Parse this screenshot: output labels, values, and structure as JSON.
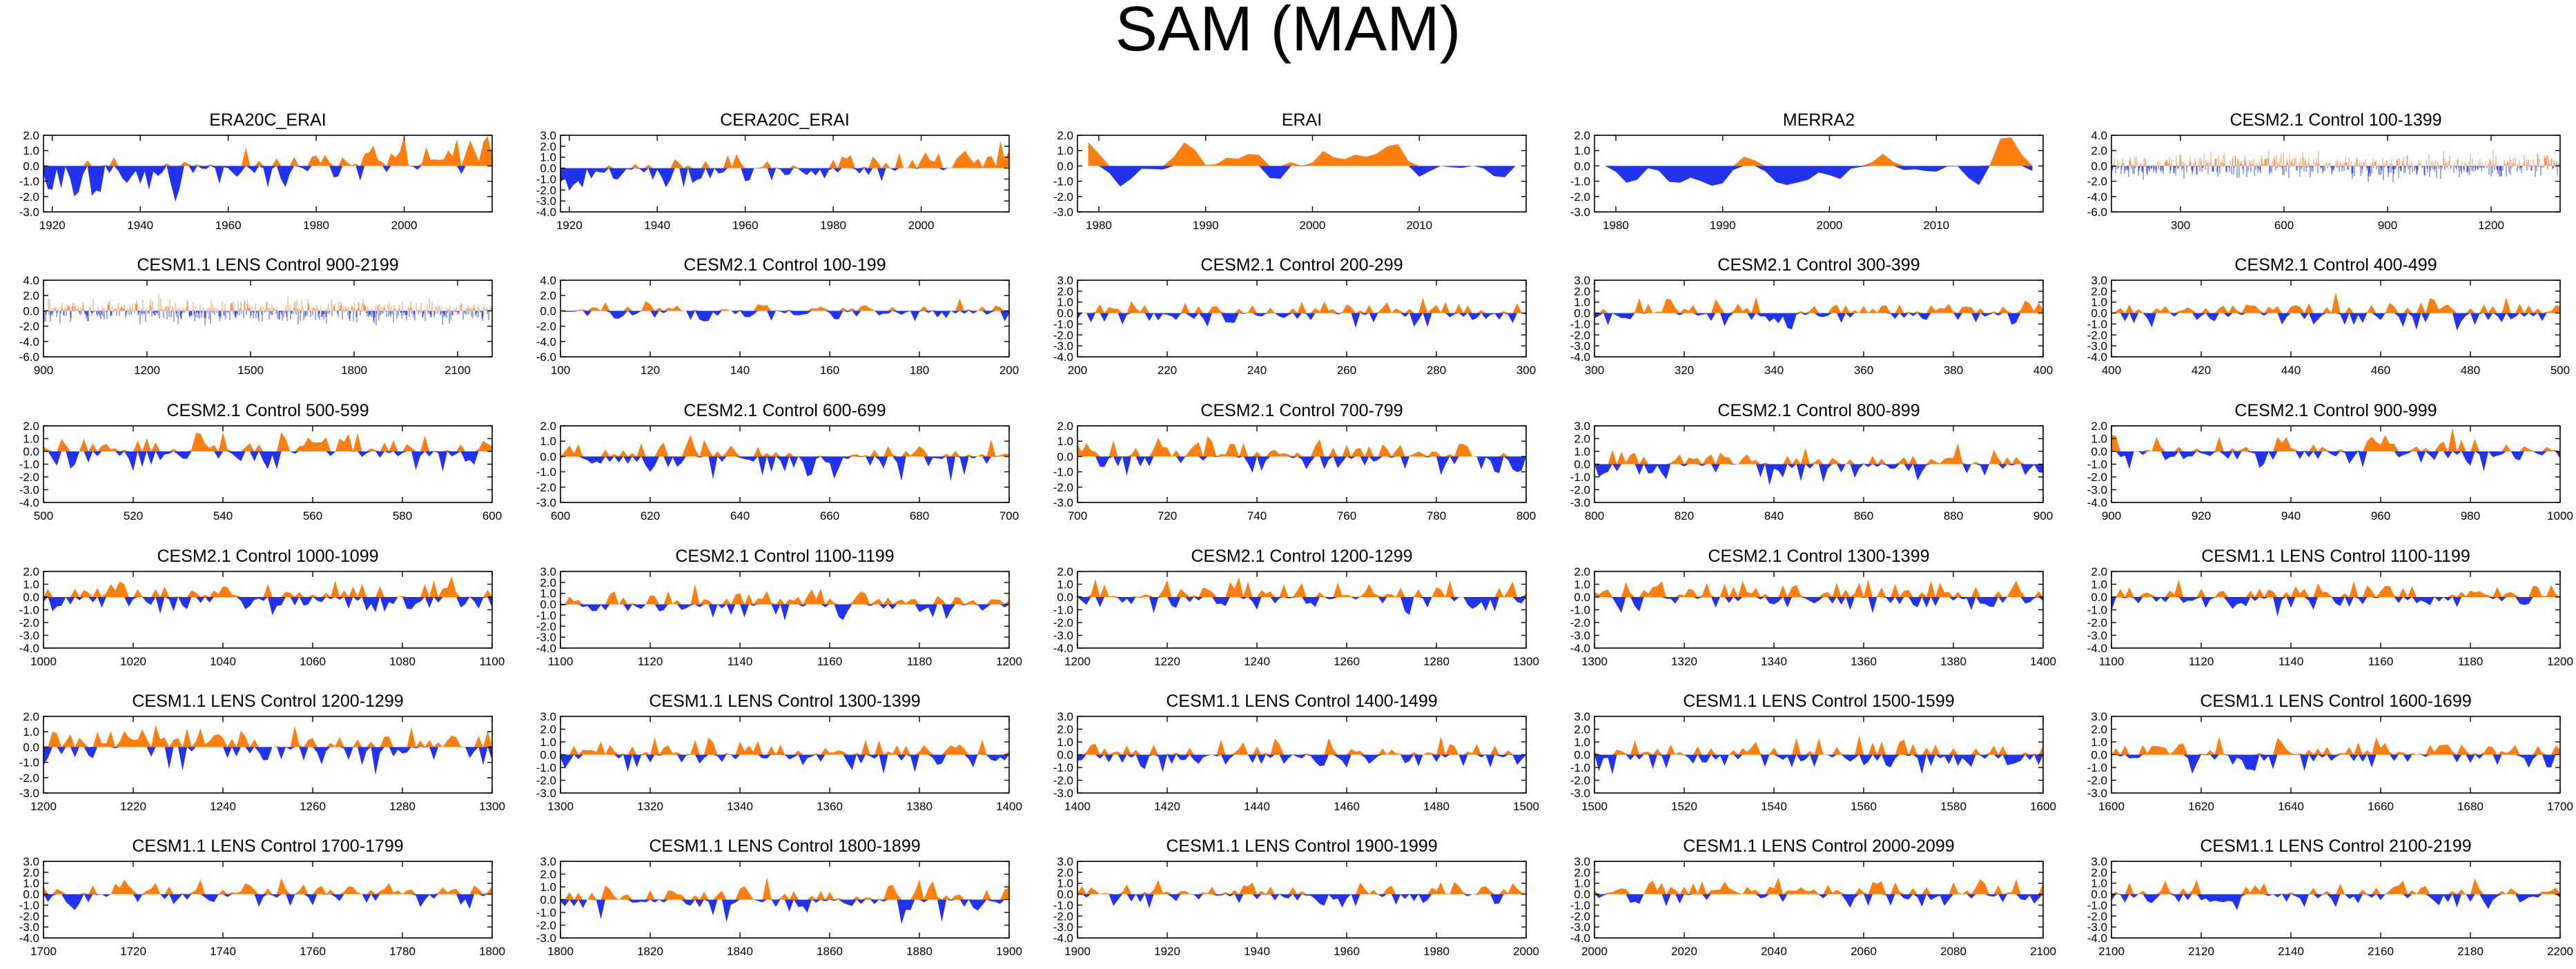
{
  "title": "SAM (MAM)",
  "colors": {
    "positive": "#ff7f0e",
    "negative": "#2233ee",
    "axis": "#000000"
  },
  "chart_data": [
    {
      "type": "area",
      "title": "ERA20C_ERAI",
      "xlim": [
        1918,
        2020
      ],
      "xticks": [
        "1920",
        "1940",
        "1960",
        "1980",
        "2000"
      ],
      "ylim": [
        -3,
        2
      ],
      "yticks": [
        "2.0",
        "1.0",
        "0.0",
        "-1.0",
        "-2.0",
        "-3.0"
      ],
      "style": "annual",
      "trend": 0.55,
      "amp": 1.0,
      "seed": 11
    },
    {
      "type": "area",
      "title": "CERA20C_ERAI",
      "xlim": [
        1918,
        2020
      ],
      "xticks": [
        "1920",
        "1940",
        "1960",
        "1980",
        "2000"
      ],
      "ylim": [
        -4,
        3
      ],
      "yticks": [
        "3.0",
        "2.0",
        "1.0",
        "0.0",
        "-1.0",
        "-2.0",
        "-3.0",
        "-4.0"
      ],
      "style": "annual",
      "trend": 0.45,
      "amp": 0.9,
      "seed": 12
    },
    {
      "type": "area",
      "title": "ERAI",
      "xlim": [
        1978,
        2020
      ],
      "xticks": [
        "1980",
        "1990",
        "2000",
        "2010"
      ],
      "ylim": [
        -3,
        2
      ],
      "yticks": [
        "2.0",
        "1.0",
        "0.0",
        "-1.0",
        "-2.0",
        "-3.0"
      ],
      "style": "smooth",
      "trend": 0,
      "amp": 1.2,
      "seed": 13
    },
    {
      "type": "area",
      "title": "MERRA2",
      "xlim": [
        1978,
        2020
      ],
      "xticks": [
        "1980",
        "1990",
        "2000",
        "2010"
      ],
      "ylim": [
        -3,
        2
      ],
      "yticks": [
        "2.0",
        "1.0",
        "0.0",
        "-1.0",
        "-2.0",
        "-3.0"
      ],
      "style": "smooth",
      "trend": 0,
      "amp": 1.2,
      "seed": 14
    },
    {
      "type": "area",
      "title": "CESM2.1 Control 100-1399",
      "xlim": [
        100,
        1400
      ],
      "xticks": [
        "300",
        "600",
        "900",
        "1200"
      ],
      "ylim": [
        -6,
        4
      ],
      "yticks": [
        "4.0",
        "2.0",
        "0.0",
        "-2.0",
        "-4.0",
        "-6.0"
      ],
      "style": "lines",
      "trend": 0,
      "amp": 1.0,
      "seed": 15
    },
    {
      "type": "area",
      "title": "CESM1.1 LENS Control 900-2199",
      "xlim": [
        900,
        2200
      ],
      "xticks": [
        "900",
        "1200",
        "1500",
        "1800",
        "2100"
      ],
      "ylim": [
        -6,
        4
      ],
      "yticks": [
        "4.0",
        "2.0",
        "0.0",
        "-2.0",
        "-4.0",
        "-6.0"
      ],
      "style": "lines",
      "trend": 0,
      "amp": 1.0,
      "seed": 21
    },
    {
      "type": "area",
      "title": "CESM2.1 Control 100-199",
      "xlim": [
        100,
        200
      ],
      "xticks": [
        "100",
        "120",
        "140",
        "160",
        "180",
        "200"
      ],
      "ylim": [
        -6,
        4
      ],
      "yticks": [
        "4.0",
        "2.0",
        "0.0",
        "-2.0",
        "-4.0",
        "-6.0"
      ],
      "style": "annual",
      "trend": 0,
      "amp": 0.9,
      "seed": 22
    },
    {
      "type": "area",
      "title": "CESM2.1 Control 200-299",
      "xlim": [
        200,
        300
      ],
      "xticks": [
        "200",
        "220",
        "240",
        "260",
        "280",
        "300"
      ],
      "ylim": [
        -4,
        3
      ],
      "yticks": [
        "3.0",
        "2.0",
        "1.0",
        "0.0",
        "-1.0",
        "-2.0",
        "-3.0",
        "-4.0"
      ],
      "style": "annual",
      "trend": 0,
      "amp": 0.95,
      "seed": 23
    },
    {
      "type": "area",
      "title": "CESM2.1 Control 300-399",
      "xlim": [
        300,
        400
      ],
      "xticks": [
        "300",
        "320",
        "340",
        "360",
        "380",
        "400"
      ],
      "ylim": [
        -4,
        3
      ],
      "yticks": [
        "3.0",
        "2.0",
        "1.0",
        "0.0",
        "-1.0",
        "-2.0",
        "-3.0",
        "-4.0"
      ],
      "style": "annual",
      "trend": 0,
      "amp": 0.95,
      "seed": 24
    },
    {
      "type": "area",
      "title": "CESM2.1 Control 400-499",
      "xlim": [
        400,
        500
      ],
      "xticks": [
        "400",
        "420",
        "440",
        "460",
        "480",
        "500"
      ],
      "ylim": [
        -4,
        3
      ],
      "yticks": [
        "3.0",
        "2.0",
        "1.0",
        "0.0",
        "-1.0",
        "-2.0",
        "-3.0",
        "-4.0"
      ],
      "style": "annual",
      "trend": 0,
      "amp": 0.95,
      "seed": 25
    },
    {
      "type": "area",
      "title": "CESM2.1 Control 500-599",
      "xlim": [
        500,
        600
      ],
      "xticks": [
        "500",
        "520",
        "540",
        "560",
        "580",
        "600"
      ],
      "ylim": [
        -4,
        2
      ],
      "yticks": [
        "2.0",
        "1.0",
        "0.0",
        "-1.0",
        "-2.0",
        "-3.0",
        "-4.0"
      ],
      "style": "annual",
      "trend": 0,
      "amp": 1.0,
      "seed": 31
    },
    {
      "type": "area",
      "title": "CESM2.1 Control 600-699",
      "xlim": [
        600,
        700
      ],
      "xticks": [
        "600",
        "620",
        "640",
        "660",
        "680",
        "700"
      ],
      "ylim": [
        -3,
        2
      ],
      "yticks": [
        "2.0",
        "1.0",
        "0.0",
        "-1.0",
        "-2.0",
        "-3.0"
      ],
      "style": "annual",
      "trend": 0,
      "amp": 0.9,
      "seed": 32
    },
    {
      "type": "area",
      "title": "CESM2.1 Control 700-799",
      "xlim": [
        700,
        800
      ],
      "xticks": [
        "700",
        "720",
        "740",
        "760",
        "780",
        "800"
      ],
      "ylim": [
        -3,
        2
      ],
      "yticks": [
        "2.0",
        "1.0",
        "0.0",
        "-1.0",
        "-2.0",
        "-3.0"
      ],
      "style": "annual",
      "trend": 0,
      "amp": 0.9,
      "seed": 33
    },
    {
      "type": "area",
      "title": "CESM2.1 Control 800-899",
      "xlim": [
        800,
        900
      ],
      "xticks": [
        "800",
        "820",
        "840",
        "860",
        "880",
        "900"
      ],
      "ylim": [
        -3,
        3
      ],
      "yticks": [
        "3.0",
        "2.0",
        "1.0",
        "0.0",
        "-1.0",
        "-2.0",
        "-3.0"
      ],
      "style": "annual",
      "trend": 0,
      "amp": 0.85,
      "seed": 34
    },
    {
      "type": "area",
      "title": "CESM2.1 Control 900-999",
      "xlim": [
        900,
        1000
      ],
      "xticks": [
        "900",
        "920",
        "940",
        "960",
        "980",
        "1000"
      ],
      "ylim": [
        -4,
        2
      ],
      "yticks": [
        "2.0",
        "1.0",
        "0.0",
        "-1.0",
        "-2.0",
        "-3.0",
        "-4.0"
      ],
      "style": "annual",
      "trend": 0,
      "amp": 0.9,
      "seed": 35
    },
    {
      "type": "area",
      "title": "CESM2.1 Control 1000-1099",
      "xlim": [
        1000,
        1100
      ],
      "xticks": [
        "1000",
        "1020",
        "1040",
        "1060",
        "1080",
        "1100"
      ],
      "ylim": [
        -4,
        2
      ],
      "yticks": [
        "2.0",
        "1.0",
        "0.0",
        "-1.0",
        "-2.0",
        "-3.0",
        "-4.0"
      ],
      "style": "annual",
      "trend": 0,
      "amp": 0.95,
      "seed": 41
    },
    {
      "type": "area",
      "title": "CESM2.1 Control 1100-1199",
      "xlim": [
        1100,
        1200
      ],
      "xticks": [
        "1100",
        "1120",
        "1140",
        "1160",
        "1180",
        "1200"
      ],
      "ylim": [
        -4,
        3
      ],
      "yticks": [
        "3.0",
        "2.0",
        "1.0",
        "0.0",
        "-1.0",
        "-2.0",
        "-3.0",
        "-4.0"
      ],
      "style": "annual",
      "trend": 0,
      "amp": 0.95,
      "seed": 42
    },
    {
      "type": "area",
      "title": "CESM2.1 Control 1200-1299",
      "xlim": [
        1200,
        1300
      ],
      "xticks": [
        "1200",
        "1220",
        "1240",
        "1260",
        "1280",
        "1300"
      ],
      "ylim": [
        -4,
        2
      ],
      "yticks": [
        "2.0",
        "1.0",
        "0.0",
        "-1.0",
        "-2.0",
        "-3.0",
        "-4.0"
      ],
      "style": "annual",
      "trend": 0,
      "amp": 0.95,
      "seed": 43
    },
    {
      "type": "area",
      "title": "CESM2.1 Control 1300-1399",
      "xlim": [
        1300,
        1400
      ],
      "xticks": [
        "1300",
        "1320",
        "1340",
        "1360",
        "1380",
        "1400"
      ],
      "ylim": [
        -4,
        2
      ],
      "yticks": [
        "2.0",
        "1.0",
        "0.0",
        "-1.0",
        "-2.0",
        "-3.0",
        "-4.0"
      ],
      "style": "annual",
      "trend": 0,
      "amp": 0.95,
      "seed": 44
    },
    {
      "type": "area",
      "title": "CESM1.1 LENS Control 1100-1199",
      "xlim": [
        1100,
        1200
      ],
      "xticks": [
        "1100",
        "1120",
        "1140",
        "1160",
        "1180",
        "1200"
      ],
      "ylim": [
        -4,
        2
      ],
      "yticks": [
        "2.0",
        "1.0",
        "0.0",
        "-1.0",
        "-2.0",
        "-3.0",
        "-4.0"
      ],
      "style": "annual",
      "trend": 0,
      "amp": 0.95,
      "seed": 45
    },
    {
      "type": "area",
      "title": "CESM1.1 LENS Control 1200-1299",
      "xlim": [
        1200,
        1300
      ],
      "xticks": [
        "1200",
        "1220",
        "1240",
        "1260",
        "1280",
        "1300"
      ],
      "ylim": [
        -3,
        2
      ],
      "yticks": [
        "2.0",
        "1.0",
        "0.0",
        "-1.0",
        "-2.0",
        "-3.0"
      ],
      "style": "annual",
      "trend": 0,
      "amp": 0.95,
      "seed": 51
    },
    {
      "type": "area",
      "title": "CESM1.1 LENS Control 1300-1399",
      "xlim": [
        1300,
        1400
      ],
      "xticks": [
        "1300",
        "1320",
        "1340",
        "1360",
        "1380",
        "1400"
      ],
      "ylim": [
        -3,
        3
      ],
      "yticks": [
        "3.0",
        "2.0",
        "1.0",
        "0.0",
        "-1.0",
        "-2.0",
        "-3.0"
      ],
      "style": "annual",
      "trend": 0,
      "amp": 0.95,
      "seed": 52
    },
    {
      "type": "area",
      "title": "CESM1.1 LENS Control 1400-1499",
      "xlim": [
        1400,
        1500
      ],
      "xticks": [
        "1400",
        "1420",
        "1440",
        "1460",
        "1480",
        "1500"
      ],
      "ylim": [
        -3,
        3
      ],
      "yticks": [
        "3.0",
        "2.0",
        "1.0",
        "0.0",
        "-1.0",
        "-2.0",
        "-3.0"
      ],
      "style": "annual",
      "trend": 0,
      "amp": 0.95,
      "seed": 53
    },
    {
      "type": "area",
      "title": "CESM1.1 LENS Control 1500-1599",
      "xlim": [
        1500,
        1600
      ],
      "xticks": [
        "1500",
        "1520",
        "1540",
        "1560",
        "1580",
        "1600"
      ],
      "ylim": [
        -3,
        3
      ],
      "yticks": [
        "3.0",
        "2.0",
        "1.0",
        "0.0",
        "-1.0",
        "-2.0",
        "-3.0"
      ],
      "style": "annual",
      "trend": 0,
      "amp": 0.95,
      "seed": 54
    },
    {
      "type": "area",
      "title": "CESM1.1 LENS Control 1600-1699",
      "xlim": [
        1600,
        1700
      ],
      "xticks": [
        "1600",
        "1620",
        "1640",
        "1660",
        "1680",
        "1700"
      ],
      "ylim": [
        -3,
        3
      ],
      "yticks": [
        "3.0",
        "2.0",
        "1.0",
        "0.0",
        "-1.0",
        "-2.0",
        "-3.0"
      ],
      "style": "annual",
      "trend": 0,
      "amp": 0.95,
      "seed": 55
    },
    {
      "type": "area",
      "title": "CESM1.1 LENS Control 1700-1799",
      "xlim": [
        1700,
        1800
      ],
      "xticks": [
        "1700",
        "1720",
        "1740",
        "1760",
        "1780",
        "1800"
      ],
      "ylim": [
        -4,
        3
      ],
      "yticks": [
        "3.0",
        "2.0",
        "1.0",
        "0.0",
        "-1.0",
        "-2.0",
        "-3.0",
        "-4.0"
      ],
      "style": "annual",
      "trend": 0,
      "amp": 0.95,
      "seed": 61
    },
    {
      "type": "area",
      "title": "CESM1.1 LENS Control 1800-1899",
      "xlim": [
        1800,
        1900
      ],
      "xticks": [
        "1800",
        "1820",
        "1840",
        "1860",
        "1880",
        "1900"
      ],
      "ylim": [
        -3,
        3
      ],
      "yticks": [
        "3.0",
        "2.0",
        "1.0",
        "0.0",
        "-1.0",
        "-2.0",
        "-3.0"
      ],
      "style": "annual",
      "trend": 0,
      "amp": 0.95,
      "seed": 62
    },
    {
      "type": "area",
      "title": "CESM1.1 LENS Control 1900-1999",
      "xlim": [
        1900,
        2000
      ],
      "xticks": [
        "1900",
        "1920",
        "1940",
        "1960",
        "1980",
        "2000"
      ],
      "ylim": [
        -4,
        3
      ],
      "yticks": [
        "3.0",
        "2.0",
        "1.0",
        "0.0",
        "-1.0",
        "-2.0",
        "-3.0",
        "-4.0"
      ],
      "style": "annual",
      "trend": 0,
      "amp": 0.95,
      "seed": 63
    },
    {
      "type": "area",
      "title": "CESM1.1 LENS Control 2000-2099",
      "xlim": [
        2000,
        2100
      ],
      "xticks": [
        "2000",
        "2020",
        "2040",
        "2060",
        "2080",
        "2100"
      ],
      "ylim": [
        -4,
        3
      ],
      "yticks": [
        "3.0",
        "2.0",
        "1.0",
        "0.0",
        "-1.0",
        "-2.0",
        "-3.0",
        "-4.0"
      ],
      "style": "annual",
      "trend": 0,
      "amp": 0.95,
      "seed": 64
    },
    {
      "type": "area",
      "title": "CESM1.1 LENS Control 2100-2199",
      "xlim": [
        2100,
        2200
      ],
      "xticks": [
        "2100",
        "2120",
        "2140",
        "2160",
        "2180",
        "2200"
      ],
      "ylim": [
        -4,
        3
      ],
      "yticks": [
        "3.0",
        "2.0",
        "1.0",
        "0.0",
        "-1.0",
        "-2.0",
        "-3.0",
        "-4.0"
      ],
      "style": "annual",
      "trend": 0,
      "amp": 0.95,
      "seed": 65
    }
  ]
}
